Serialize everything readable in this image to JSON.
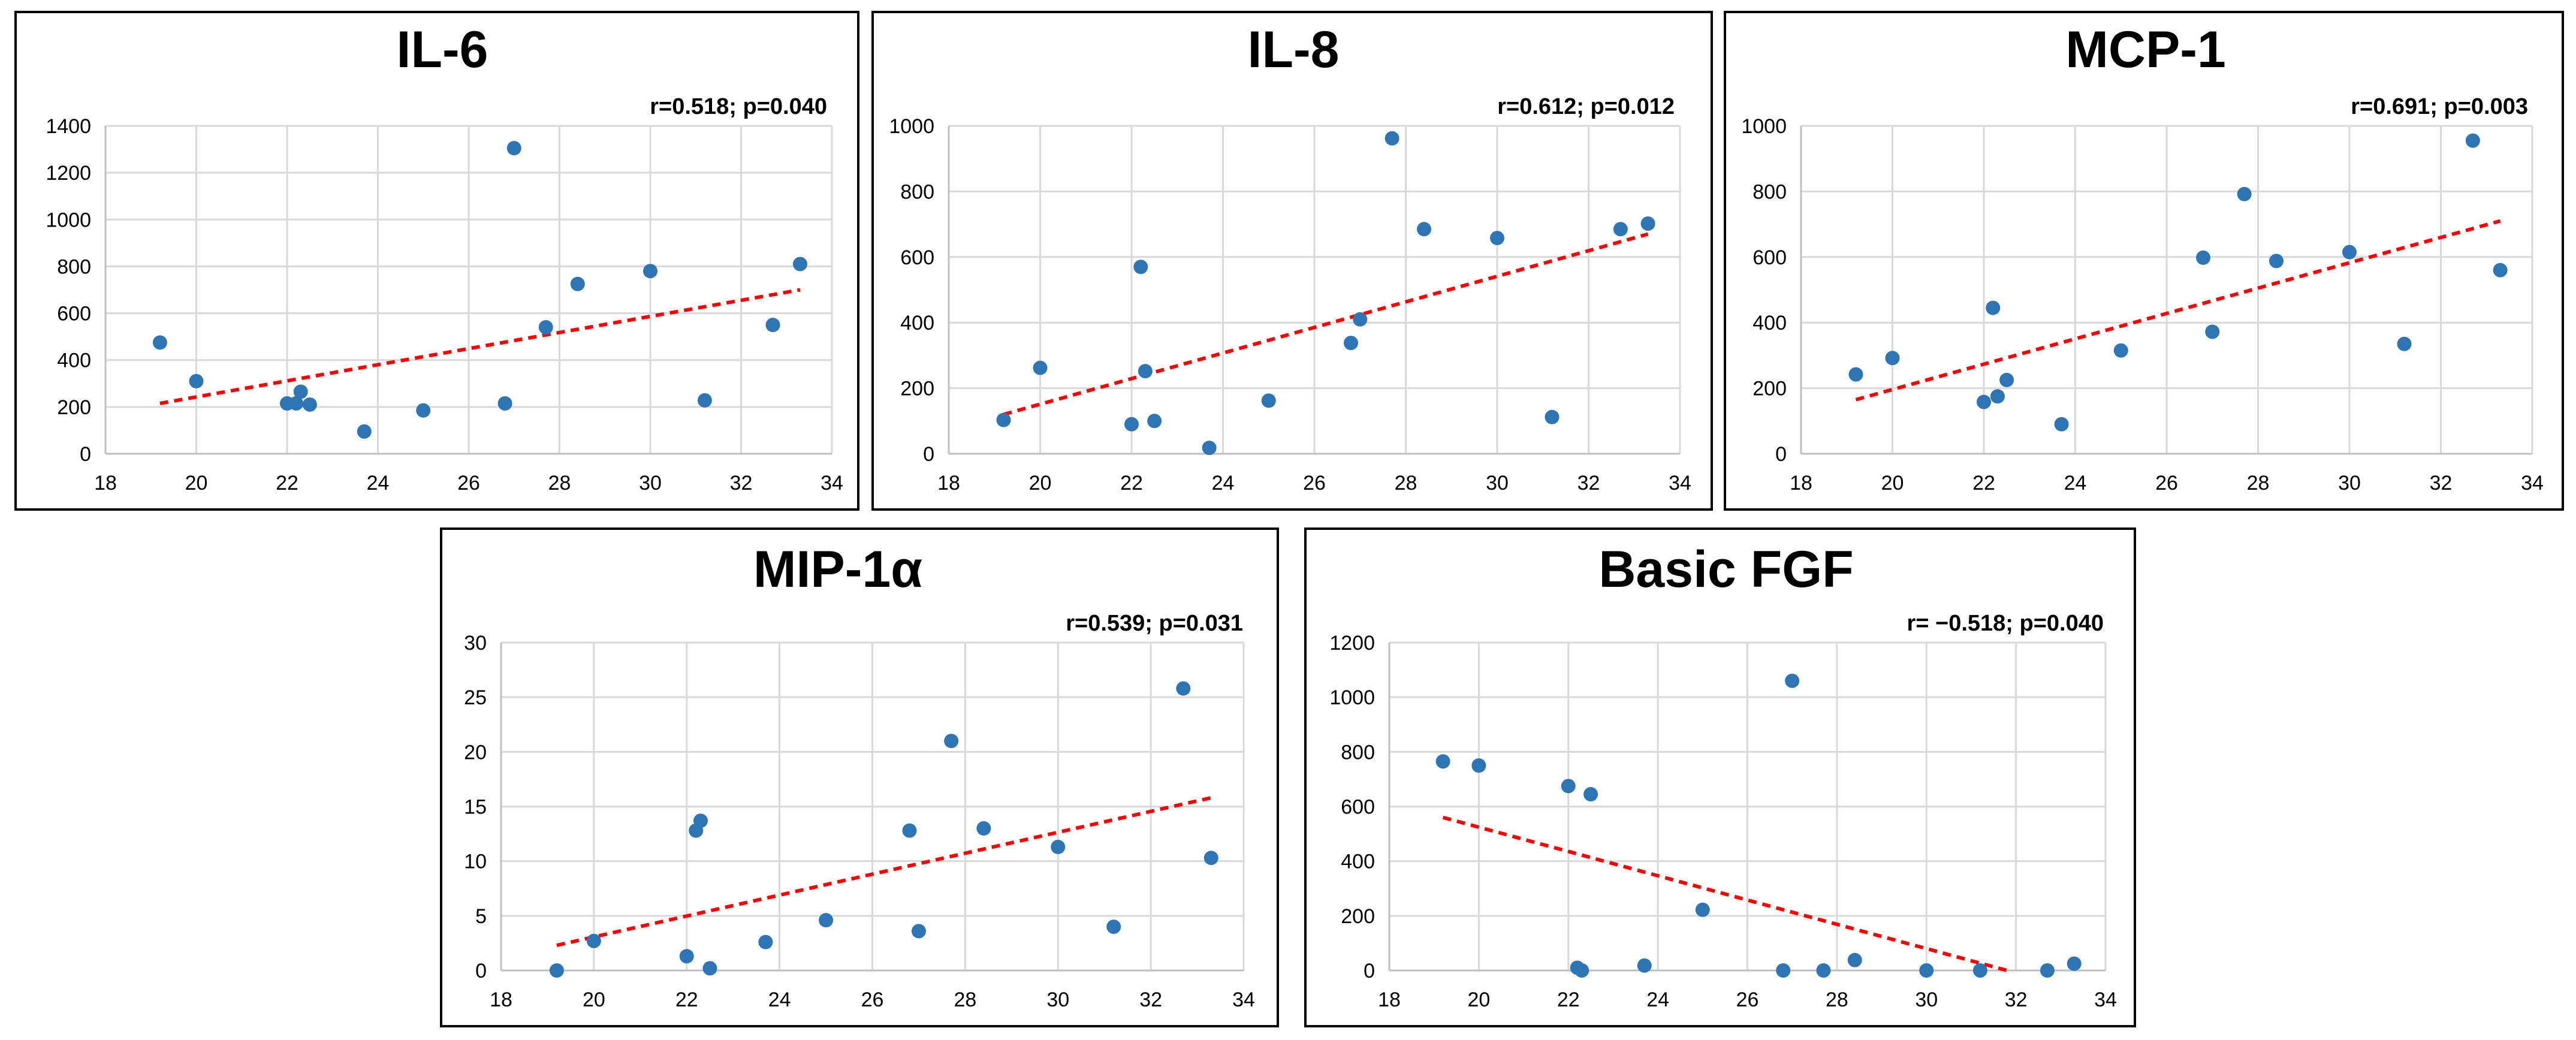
{
  "chart_data": [
    {
      "type": "scatter",
      "title": "IL-6",
      "stat": "r=0.518; p=0.040",
      "xlim": [
        18,
        34
      ],
      "xticks": [
        18,
        20,
        22,
        24,
        26,
        28,
        30,
        32,
        34
      ],
      "ylim": [
        0,
        1400
      ],
      "yticks": [
        0,
        200,
        400,
        600,
        800,
        1000,
        1200,
        1400
      ],
      "points": [
        [
          19.2,
          475
        ],
        [
          20,
          310
        ],
        [
          22,
          215
        ],
        [
          22.2,
          215
        ],
        [
          22.3,
          265
        ],
        [
          22.5,
          210
        ],
        [
          23.7,
          95
        ],
        [
          25,
          185
        ],
        [
          26.8,
          215
        ],
        [
          27,
          1305
        ],
        [
          27.7,
          540
        ],
        [
          28.4,
          725
        ],
        [
          30,
          780
        ],
        [
          31.2,
          228
        ],
        [
          32.7,
          550
        ],
        [
          33.3,
          810
        ]
      ],
      "trendline": [
        [
          19.2,
          215
        ],
        [
          33.3,
          700
        ]
      ]
    },
    {
      "type": "scatter",
      "title": "IL-8",
      "stat": "r=0.612; p=0.012",
      "xlim": [
        18,
        34
      ],
      "xticks": [
        18,
        20,
        22,
        24,
        26,
        28,
        30,
        32,
        34
      ],
      "ylim": [
        0,
        1000
      ],
      "yticks": [
        0,
        200,
        400,
        600,
        800,
        1000
      ],
      "points": [
        [
          19.2,
          103
        ],
        [
          20,
          262
        ],
        [
          22,
          90
        ],
        [
          22.2,
          570
        ],
        [
          22.3,
          252
        ],
        [
          22.5,
          100
        ],
        [
          23.7,
          18
        ],
        [
          25,
          162
        ],
        [
          26.8,
          338
        ],
        [
          27,
          410
        ],
        [
          27.7,
          962
        ],
        [
          28.4,
          685
        ],
        [
          30,
          658
        ],
        [
          31.2,
          112
        ],
        [
          32.7,
          685
        ],
        [
          33.3,
          702
        ]
      ],
      "trendline": [
        [
          19.2,
          120
        ],
        [
          33.3,
          670
        ]
      ]
    },
    {
      "type": "scatter",
      "title": "MCP-1",
      "stat": "r=0.691; p=0.003",
      "xlim": [
        18,
        34
      ],
      "xticks": [
        18,
        20,
        22,
        24,
        26,
        28,
        30,
        32,
        34
      ],
      "ylim": [
        0,
        1000
      ],
      "yticks": [
        0,
        200,
        400,
        600,
        800,
        1000
      ],
      "points": [
        [
          19.2,
          242
        ],
        [
          20,
          292
        ],
        [
          22,
          158
        ],
        [
          22.2,
          445
        ],
        [
          22.3,
          175
        ],
        [
          22.5,
          225
        ],
        [
          23.7,
          90
        ],
        [
          25,
          315
        ],
        [
          26.8,
          598
        ],
        [
          27,
          372
        ],
        [
          27.7,
          792
        ],
        [
          28.4,
          588
        ],
        [
          30,
          615
        ],
        [
          31.2,
          335
        ],
        [
          32.7,
          955
        ],
        [
          33.3,
          560
        ]
      ],
      "trendline": [
        [
          19.2,
          165
        ],
        [
          33.3,
          710
        ]
      ]
    },
    {
      "type": "scatter",
      "title": "MIP-1α",
      "stat": "r=0.539; p=0.031",
      "xlim": [
        18,
        34
      ],
      "xticks": [
        18,
        20,
        22,
        24,
        26,
        28,
        30,
        32,
        34
      ],
      "ylim": [
        0,
        30
      ],
      "yticks": [
        0,
        5,
        10,
        15,
        20,
        25,
        30
      ],
      "points": [
        [
          19.2,
          0
        ],
        [
          20,
          2.7
        ],
        [
          22,
          1.3
        ],
        [
          22.2,
          12.8
        ],
        [
          22.3,
          13.7
        ],
        [
          22.5,
          0.2
        ],
        [
          23.7,
          2.6
        ],
        [
          25,
          4.6
        ],
        [
          26.8,
          12.8
        ],
        [
          27,
          3.6
        ],
        [
          27.7,
          21
        ],
        [
          28.4,
          13
        ],
        [
          30,
          11.3
        ],
        [
          31.2,
          4
        ],
        [
          32.7,
          25.8
        ],
        [
          33.3,
          10.3
        ]
      ],
      "trendline": [
        [
          19.2,
          2.3
        ],
        [
          33.3,
          15.8
        ]
      ]
    },
    {
      "type": "scatter",
      "title": "Basic FGF",
      "stat": "r= −0.518; p=0.040",
      "xlim": [
        18,
        34
      ],
      "xticks": [
        18,
        20,
        22,
        24,
        26,
        28,
        30,
        32,
        34
      ],
      "ylim": [
        0,
        1200
      ],
      "yticks": [
        0,
        200,
        400,
        600,
        800,
        1000,
        1200
      ],
      "points": [
        [
          19.2,
          765
        ],
        [
          20,
          750
        ],
        [
          22,
          675
        ],
        [
          22.2,
          10
        ],
        [
          22.3,
          0
        ],
        [
          22.5,
          645
        ],
        [
          23.7,
          18
        ],
        [
          25,
          222
        ],
        [
          26.8,
          0
        ],
        [
          27,
          1060
        ],
        [
          27.7,
          0
        ],
        [
          28.4,
          38
        ],
        [
          30,
          0
        ],
        [
          31.2,
          0
        ],
        [
          32.7,
          0
        ],
        [
          33.3,
          25
        ]
      ],
      "trendline": [
        [
          19.2,
          560
        ],
        [
          31.8,
          0
        ]
      ]
    }
  ]
}
